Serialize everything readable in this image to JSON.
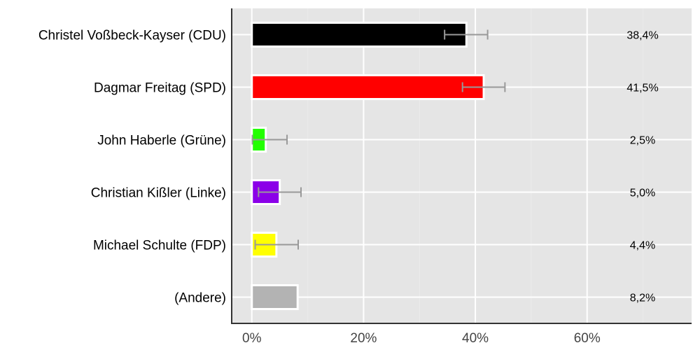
{
  "chart_data": {
    "type": "bar",
    "orientation": "horizontal",
    "categories": [
      "Christel Voßbeck-Kayser (CDU)",
      "Dagmar Freitag (SPD)",
      "John Haberle (Grüne)",
      "Christian Kißler (Linke)",
      "Michael Schulte (FDP)",
      "(Andere)"
    ],
    "values": [
      38.4,
      41.5,
      2.5,
      5.0,
      4.4,
      8.2
    ],
    "value_labels": [
      "38,4%",
      "41,5%",
      "2,5%",
      "5,0%",
      "4,4%",
      "8,2%"
    ],
    "error_bars": [
      [
        34.5,
        42.2
      ],
      [
        37.7,
        45.3
      ],
      [
        0.1,
        6.3
      ],
      [
        1.2,
        8.8
      ],
      [
        0.6,
        8.3
      ],
      null
    ],
    "colors": [
      "#000000",
      "#ff0000",
      "#22ff00",
      "#8b00e8",
      "#ffff00",
      "#b3b3b3"
    ],
    "xlim": [
      -3.6,
      78.7
    ],
    "xticks": [
      0,
      20,
      40,
      60
    ],
    "xtick_labels": [
      "0%",
      "20%",
      "40%",
      "60%"
    ],
    "grid": true,
    "background": "#e5e5e5",
    "error_bar_color": "#999999"
  }
}
